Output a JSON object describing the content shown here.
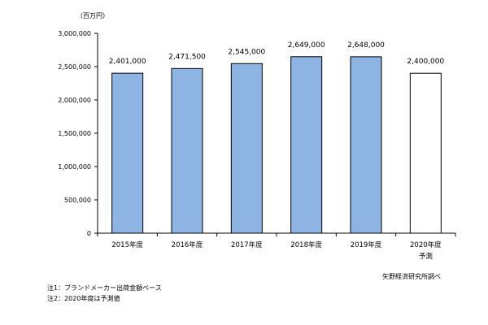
{
  "chart_data": {
    "type": "bar",
    "unit_label": "（百万円）",
    "categories": [
      "2015年度",
      "2016年度",
      "2017年度",
      "2018年度",
      "2019年度",
      "2020年度"
    ],
    "category_sublabels": [
      "",
      "",
      "",
      "",
      "",
      "予測"
    ],
    "values": [
      2401000,
      2471500,
      2545000,
      2649000,
      2648000,
      2400000
    ],
    "value_labels": [
      "2,401,000",
      "2,471,500",
      "2,545,000",
      "2,649,000",
      "2,648,000",
      "2,400,000"
    ],
    "forecast_index": 5,
    "ylim": [
      0,
      3000000
    ],
    "yticks": [
      0,
      500000,
      1000000,
      1500000,
      2000000,
      2500000,
      3000000
    ],
    "ytick_labels": [
      "0",
      "500,000",
      "1,000,000",
      "1,500,000",
      "2,000,000",
      "2,500,000",
      "3,000,000"
    ],
    "grid": false,
    "colors": {
      "bar_fill": "#8db4e2",
      "bar_stroke": "#000000",
      "forecast_fill": "#ffffff"
    }
  },
  "notes": {
    "note1": "注1：ブランドメーカー出荷金額ベース",
    "note2": "注2：2020年度は予測値",
    "source": "矢野経済研究所調べ"
  }
}
